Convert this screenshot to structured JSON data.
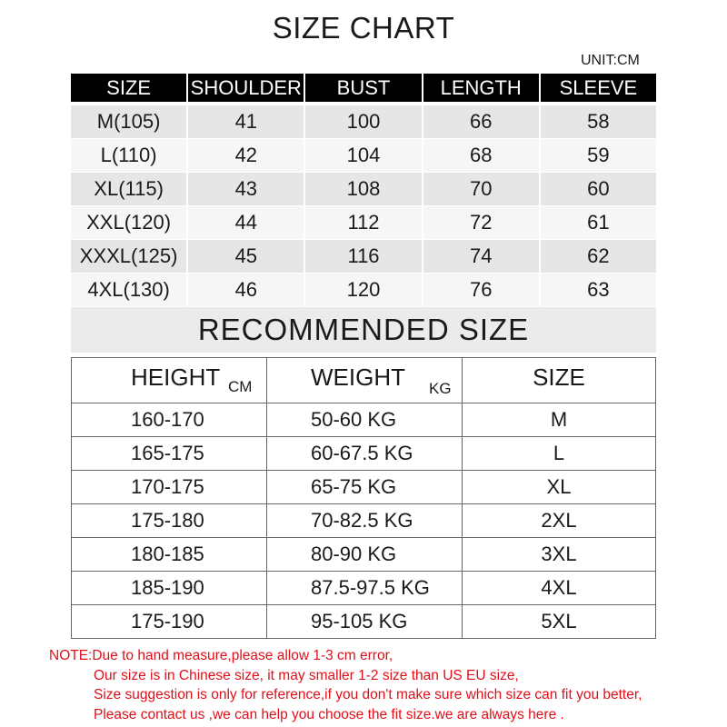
{
  "title": "SIZE CHART",
  "unit": "UNIT:CM",
  "size_table": {
    "headers": [
      "SIZE",
      "SHOULDER",
      "BUST",
      "LENGTH",
      "SLEEVE"
    ],
    "rows": [
      [
        "M(105)",
        "41",
        "100",
        "66",
        "58"
      ],
      [
        "L(110)",
        "42",
        "104",
        "68",
        "59"
      ],
      [
        "XL(115)",
        "43",
        "108",
        "70",
        "60"
      ],
      [
        "XXL(120)",
        "44",
        "112",
        "72",
        "61"
      ],
      [
        "XXXL(125)",
        "45",
        "116",
        "74",
        "62"
      ],
      [
        "4XL(130)",
        "46",
        "120",
        "76",
        "63"
      ]
    ]
  },
  "recommended": {
    "title": "RECOMMENDED SIZE",
    "headers": {
      "height": "HEIGHT",
      "height_unit": "CM",
      "weight": "WEIGHT",
      "weight_unit": "KG",
      "size": "SIZE"
    },
    "rows": [
      [
        "160-170",
        "50-60 KG",
        "M"
      ],
      [
        "165-175",
        "60-67.5 KG",
        "L"
      ],
      [
        "170-175",
        "65-75 KG",
        "XL"
      ],
      [
        "175-180",
        "70-82.5 KG",
        "2XL"
      ],
      [
        "180-185",
        "80-90 KG",
        "3XL"
      ],
      [
        "185-190",
        "87.5-97.5 KG",
        "4XL"
      ],
      [
        "175-190",
        "95-105 KG",
        "5XL"
      ]
    ]
  },
  "note": [
    "NOTE:Due to hand measure,please allow 1-3 cm error,",
    "Our size is in Chinese size, it may smaller 1-2 size than US EU size,",
    "Size suggestion is only for reference,if you don't make sure which size can fit you better,",
    "Please contact  us ,we can help you choose the fit size.we are  always here ."
  ],
  "colors": {
    "header_bg": "#000000",
    "row_odd": "#e6e6e6",
    "row_even": "#f6f6f6",
    "note": "#e0101a"
  }
}
